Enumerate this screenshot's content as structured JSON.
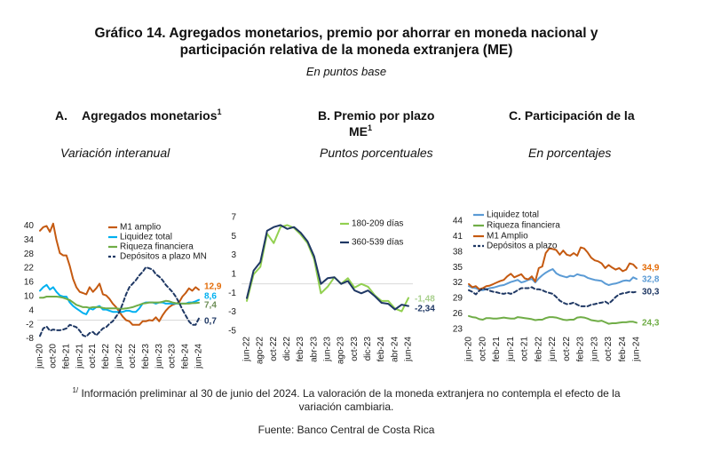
{
  "figure": {
    "title_line1": "Gráfico 14. Agregados monetarios, premio por ahorrar en moneda nacional y",
    "title_line2": "participación relativa de la moneda extranjera (ME)",
    "subtitle": "En puntos base",
    "footnote_marker": "1/",
    "footnote_line1": " Información preliminar al 30 de junio del 2024. La valoración de la moneda extranjera no contempla el efecto de la",
    "footnote_line2": "variación cambiaria.",
    "source": "Fuente: Banco Central de Costa Rica"
  },
  "chart_data": [
    {
      "type": "line",
      "panel_label": "A.",
      "title": "Agregados monetarios",
      "title_superscript": "1",
      "subtitle": "Variación interanual",
      "xlabel": "",
      "ylabel": "",
      "ylim": [
        -8,
        40
      ],
      "yticks": [
        40,
        34,
        28,
        22,
        16,
        10,
        4,
        -2,
        -8
      ],
      "reference_line": 0,
      "grid": false,
      "legend_position": "top-right",
      "x": [
        "jun-20",
        "jul-20",
        "ago-20",
        "sep-20",
        "oct-20",
        "nov-20",
        "dic-20",
        "ene-21",
        "feb-21",
        "mar-21",
        "abr-21",
        "may-21",
        "jun-21",
        "jul-21",
        "ago-21",
        "sep-21",
        "oct-21",
        "nov-21",
        "dic-21",
        "ene-22",
        "feb-22",
        "mar-22",
        "abr-22",
        "may-22",
        "jun-22",
        "jul-22",
        "ago-22",
        "sep-22",
        "oct-22",
        "nov-22",
        "dic-22",
        "ene-23",
        "feb-23",
        "mar-23",
        "abr-23",
        "may-23",
        "jun-23",
        "jul-23",
        "ago-23",
        "sep-23",
        "oct-23",
        "nov-23",
        "dic-23",
        "ene-24",
        "feb-24",
        "mar-24",
        "abr-24",
        "may-24",
        "jun-24"
      ],
      "xticks": [
        "jun-20",
        "oct-20",
        "feb-21",
        "jun-21",
        "oct-21",
        "feb-22",
        "jun-22",
        "oct-22",
        "feb-23",
        "jun-23",
        "oct-23",
        "feb-24",
        "jun-24"
      ],
      "series": [
        {
          "name": "M1 amplio",
          "color": "#C55A11",
          "label_color": "#E36C09",
          "dashed": false,
          "end_label": "12,9",
          "values": [
            38,
            39.5,
            40,
            37.5,
            41,
            34,
            28.5,
            27.5,
            27.5,
            23,
            17.5,
            14,
            12,
            11.5,
            11,
            14,
            12,
            13.5,
            15.5,
            11,
            10.5,
            9,
            7,
            5.5,
            3.5,
            1.5,
            0,
            -0.5,
            -2,
            -2,
            -2,
            -0.5,
            -0.5,
            0,
            -0.2,
            1.2,
            -0.5,
            2,
            4,
            5.5,
            6.5,
            7,
            7.5,
            10,
            11.5,
            13.5,
            12.5,
            14,
            12.9
          ]
        },
        {
          "name": "Liquidez total",
          "color": "#00B0F0",
          "label_color": "#00B0F0",
          "dashed": false,
          "end_label": "8,6",
          "values": [
            12.5,
            14,
            15,
            13,
            14,
            12,
            10.5,
            10,
            10,
            7.5,
            6,
            5,
            4,
            3,
            2.5,
            5,
            4.5,
            5.5,
            6,
            4.5,
            4.5,
            4,
            3.5,
            3.5,
            3.5,
            3.5,
            4,
            4,
            3.5,
            3.5,
            5,
            7,
            7.5,
            7.5,
            7.5,
            7,
            7.5,
            7.5,
            7,
            7,
            7,
            7,
            7,
            7,
            7,
            7.5,
            7.5,
            8,
            8.6
          ]
        },
        {
          "name": "Riqueza financiera",
          "color": "#70AD47",
          "label_color": "#6E8F58",
          "dashed": false,
          "end_label": "7,4",
          "values": [
            9.5,
            9.5,
            10,
            10,
            10,
            10,
            9.8,
            9.5,
            9,
            8.5,
            7.5,
            6.5,
            6,
            5.5,
            5.5,
            5.2,
            5.5,
            5.5,
            5.5,
            5.2,
            5,
            5,
            5,
            5,
            4.8,
            4.8,
            5,
            5.2,
            5.5,
            6,
            6.5,
            7,
            7.2,
            7.5,
            7.5,
            7.5,
            7.5,
            7.8,
            8.2,
            8,
            7.5,
            7.2,
            7,
            7,
            7,
            7,
            7.2,
            7.3,
            7.4
          ]
        },
        {
          "name": "Depósitos a plazo MN",
          "color": "#1F3864",
          "label_color": "#1F3864",
          "dashed": true,
          "end_label": "0,7",
          "values": [
            -6.7,
            -3.5,
            -2.7,
            -4.5,
            -4,
            -4.3,
            -4.3,
            -4,
            -3.5,
            -2,
            -2.5,
            -3,
            -4.5,
            -6.5,
            -7,
            -5.5,
            -5,
            -6.5,
            -5,
            -3.5,
            -3,
            -1.5,
            -0.5,
            1.5,
            3.5,
            7,
            11,
            14,
            15.5,
            17,
            19,
            20.5,
            22.5,
            22,
            21.5,
            19.5,
            18.5,
            17,
            15,
            13.5,
            12,
            10,
            7.5,
            4.5,
            2,
            -0.5,
            -2,
            -2,
            0.7
          ]
        }
      ]
    },
    {
      "type": "line",
      "panel_label": "B.",
      "title": "Premio por plazo",
      "title_line2": "ME",
      "title_superscript": "1",
      "subtitle": "Puntos porcentuales",
      "xlabel": "",
      "ylabel": "",
      "ylim": [
        -5,
        7
      ],
      "yticks": [
        7,
        5,
        3,
        1,
        -1,
        -3,
        -5
      ],
      "reference_line": 0,
      "grid": false,
      "legend_position": "top-right",
      "x": [
        "jun-22",
        "jul-22",
        "ago-22",
        "sep-22",
        "oct-22",
        "nov-22",
        "dic-22",
        "ene-23",
        "feb-23",
        "mar-23",
        "abr-23",
        "may-23",
        "jun-23",
        "jul-23",
        "ago-23",
        "sep-23",
        "oct-23",
        "nov-23",
        "dic-23",
        "ene-24",
        "feb-24",
        "mar-24",
        "abr-24",
        "may-24",
        "jun-24"
      ],
      "xticks": [
        "jun-22",
        "ago-22",
        "oct-22",
        "dic-22",
        "feb-23",
        "abr-23",
        "jun-23",
        "ago-23",
        "oct-23",
        "dic-23",
        "feb-24",
        "abr-24",
        "jun-24"
      ],
      "series": [
        {
          "name": "180-209 días",
          "color": "#92D050",
          "label_color": "#A9D08E",
          "dashed": false,
          "end_label": "-1,48",
          "values": [
            -1.8,
            1.0,
            1.8,
            5.3,
            4.3,
            6.0,
            6.2,
            5.9,
            5.2,
            4.3,
            2.6,
            -1.0,
            -0.3,
            0.7,
            0.0,
            0.6,
            -0.4,
            0.0,
            -0.3,
            -1.2,
            -1.8,
            -1.8,
            -2.6,
            -2.9,
            -1.48
          ]
        },
        {
          "name": "360-539 días",
          "color": "#1F3864",
          "label_color": "#1F3864",
          "dashed": false,
          "end_label": "-2,34",
          "values": [
            -1.5,
            1.4,
            2.3,
            5.6,
            6.0,
            6.2,
            5.8,
            6.0,
            5.4,
            4.5,
            2.9,
            0.0,
            0.6,
            0.7,
            0.0,
            0.3,
            -0.7,
            -1.0,
            -0.7,
            -1.3,
            -2.0,
            -2.1,
            -2.7,
            -2.2,
            -2.34
          ]
        }
      ]
    },
    {
      "type": "line",
      "panel_label": "C.",
      "title": "Participación de la",
      "subtitle": "En porcentajes",
      "xlabel": "",
      "ylabel": "",
      "ylim": [
        23,
        44
      ],
      "yticks": [
        44,
        41,
        38,
        35,
        32,
        29,
        26,
        23
      ],
      "grid": false,
      "legend_position": "top-left",
      "x": [
        "jun-20",
        "jul-20",
        "ago-20",
        "sep-20",
        "oct-20",
        "nov-20",
        "dic-20",
        "ene-21",
        "feb-21",
        "mar-21",
        "abr-21",
        "may-21",
        "jun-21",
        "jul-21",
        "ago-21",
        "sep-21",
        "oct-21",
        "nov-21",
        "dic-21",
        "ene-22",
        "feb-22",
        "mar-22",
        "abr-22",
        "may-22",
        "jun-22",
        "jul-22",
        "ago-22",
        "sep-22",
        "oct-22",
        "nov-22",
        "dic-22",
        "ene-23",
        "feb-23",
        "mar-23",
        "abr-23",
        "may-23",
        "jun-23",
        "jul-23",
        "ago-23",
        "sep-23",
        "oct-23",
        "nov-23",
        "dic-23",
        "ene-24",
        "feb-24",
        "mar-24",
        "abr-24",
        "may-24",
        "jun-24"
      ],
      "xticks": [
        "jun-20",
        "oct-20",
        "feb-21",
        "jun-21",
        "oct-21",
        "feb-22",
        "jun-22",
        "oct-22",
        "feb-23",
        "jun-23",
        "oct-23",
        "feb-24",
        "jun-24"
      ],
      "series": [
        {
          "name": "Liquidez total",
          "color": "#5B9BD5",
          "label_color": "#5B9BD5",
          "dashed": false,
          "end_label": "32,8",
          "values": [
            31.4,
            31.1,
            31.0,
            30.7,
            30.6,
            30.8,
            31.0,
            31.1,
            31.3,
            31.5,
            31.6,
            31.9,
            32.2,
            32.4,
            32.6,
            32.1,
            32.3,
            32.6,
            32.8,
            32.1,
            32.9,
            33.5,
            34.0,
            34.4,
            34.7,
            33.9,
            33.5,
            33.3,
            33.1,
            33.4,
            33.3,
            33.7,
            33.5,
            33.4,
            33.0,
            32.8,
            32.6,
            32.5,
            32.4,
            31.9,
            31.6,
            31.8,
            31.9,
            32.1,
            32.4,
            32.5,
            32.4,
            33.1,
            32.8
          ]
        },
        {
          "name": "Riqueza financiera",
          "color": "#70AD47",
          "label_color": "#70AD47",
          "dashed": false,
          "end_label": "24,3",
          "values": [
            25.6,
            25.4,
            25.3,
            25.0,
            24.9,
            25.2,
            25.2,
            25.1,
            25.1,
            25.2,
            25.3,
            25.2,
            25.1,
            25.1,
            25.4,
            25.3,
            25.2,
            25.1,
            25.0,
            24.8,
            24.9,
            24.9,
            25.2,
            25.4,
            25.4,
            25.3,
            25.1,
            24.9,
            24.8,
            24.9,
            24.9,
            25.3,
            25.4,
            25.3,
            25.1,
            24.8,
            24.7,
            24.6,
            24.7,
            24.4,
            24.1,
            24.2,
            24.2,
            24.3,
            24.4,
            24.4,
            24.5,
            24.5,
            24.3
          ]
        },
        {
          "name": "M1 Amplio",
          "color": "#C55A11",
          "label_color": "#E36C09",
          "dashed": false,
          "end_label": "34,9",
          "values": [
            31.8,
            31.2,
            31.4,
            30.8,
            31.0,
            31.4,
            31.5,
            31.8,
            32.1,
            32.4,
            32.6,
            33.3,
            33.8,
            33.1,
            33.4,
            33.7,
            32.9,
            32.7,
            33.3,
            32.3,
            34.9,
            35.2,
            37.8,
            38.7,
            38.6,
            38.4,
            37.5,
            38.3,
            37.5,
            37.3,
            37.8,
            37.3,
            38.9,
            38.7,
            37.9,
            36.9,
            36.4,
            36.2,
            35.8,
            34.9,
            35.5,
            35.0,
            34.6,
            34.9,
            34.3,
            34.6,
            35.8,
            35.6,
            34.9
          ]
        },
        {
          "name": "Depósitos a plazo",
          "color": "#1F3864",
          "label_color": "#1F3864",
          "dashed": true,
          "end_label": "30,3",
          "values": [
            30.6,
            30.3,
            29.8,
            30.5,
            30.9,
            30.8,
            30.5,
            30.3,
            30.2,
            30.0,
            29.9,
            30.1,
            29.9,
            30.2,
            30.6,
            31.0,
            31.0,
            31.0,
            31.2,
            30.8,
            30.8,
            30.6,
            30.3,
            30.1,
            29.9,
            29.3,
            28.6,
            28.2,
            27.9,
            28.0,
            28.2,
            27.8,
            27.5,
            27.5,
            27.5,
            27.8,
            27.9,
            28.1,
            28.2,
            28.4,
            28.0,
            28.6,
            29.3,
            29.8,
            30.0,
            30.1,
            30.3,
            30.2,
            30.3
          ]
        }
      ]
    }
  ]
}
